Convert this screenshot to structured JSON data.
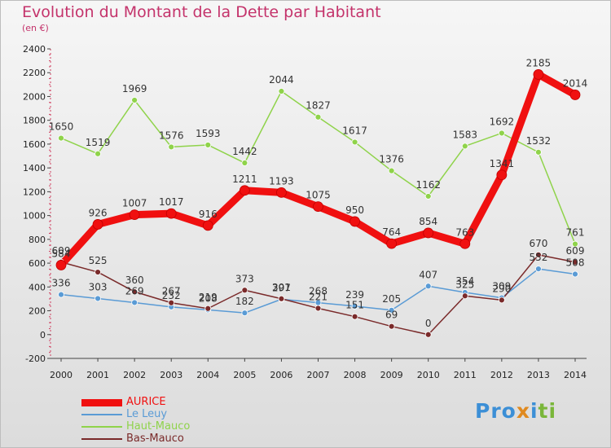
{
  "title": "Evolution du Montant de la Dette par Habitant",
  "unit": "(en €)",
  "logo": {
    "part1": "Pro",
    "part2": "x",
    "part3": "i",
    "part4": "ti"
  },
  "chart_data": {
    "type": "line",
    "x": [
      "2000",
      "2001",
      "2002",
      "2003",
      "2004",
      "2005",
      "2006",
      "2007",
      "2008",
      "2009",
      "2010",
      "2011",
      "2012",
      "2013",
      "2014"
    ],
    "ylim": [
      -200,
      2400
    ],
    "yticks": [
      "-200",
      "0",
      "200",
      "400",
      "600",
      "800",
      "1000",
      "1200",
      "1400",
      "1600",
      "1800",
      "2000",
      "2200",
      "2400"
    ],
    "grid": false,
    "legend_position": "bottom-left",
    "series": [
      {
        "name": "AURICE",
        "color": "#f01010",
        "values": [
          584,
          926,
          1007,
          1017,
          916,
          1211,
          1193,
          1075,
          950,
          764,
          854,
          763,
          1341,
          2185,
          2014
        ],
        "labels": [
          "584",
          "926",
          "1007",
          "1017",
          "916",
          "1211",
          "1193",
          "1075",
          "950",
          "764",
          "854",
          "763",
          "1341",
          "2185",
          "2014"
        ]
      },
      {
        "name": "Le Leuy",
        "color": "#5a9bd5",
        "values": [
          336,
          303,
          269,
          232,
          208,
          182,
          297,
          268,
          239,
          205,
          407,
          354,
          309,
          552,
          508
        ],
        "labels": [
          "336",
          "303",
          "269",
          "232",
          "208",
          "182",
          "297",
          "268",
          "239",
          "205",
          "407",
          "354",
          "309",
          "552",
          "508"
        ]
      },
      {
        "name": "Haut-Mauco",
        "color": "#8fd34a",
        "values": [
          1650,
          1519,
          1969,
          1576,
          1593,
          1442,
          2044,
          1827,
          1617,
          1376,
          1162,
          1583,
          1692,
          1532,
          761
        ],
        "labels": [
          "1650",
          "1519",
          "1969",
          "1576",
          "1593",
          "1442",
          "2044",
          "1827",
          "1617",
          "1376",
          "1162",
          "1583",
          "1692",
          "1532",
          "761"
        ]
      },
      {
        "name": "Bas-Mauco",
        "color": "#7a2a2a",
        "values": [
          609,
          525,
          360,
          267,
          219,
          373,
          301,
          221,
          151,
          69,
          0,
          325,
          290,
          670,
          609
        ],
        "labels": [
          "609",
          "525",
          "360",
          "267",
          "219",
          "373",
          "301",
          "221",
          "151",
          "69",
          "0",
          "325",
          "290",
          "670",
          "609"
        ]
      }
    ]
  }
}
